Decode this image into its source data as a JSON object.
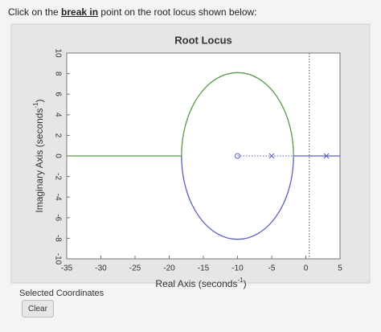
{
  "prompt": {
    "before": "Click on the ",
    "emphasis": "break in",
    "after": " point on the root locus shown below:"
  },
  "chart_data": {
    "type": "root_locus",
    "title": "Root Locus",
    "x_label": {
      "text": "Real Axis (seconds",
      "sup": "-1",
      "end": ")"
    },
    "y_label": {
      "text": "Imaginary Axis (seconds",
      "sup": "-1",
      "end": ")"
    },
    "xlim": [
      -35,
      5
    ],
    "xticks": [
      -35,
      -30,
      -25,
      -20,
      -15,
      -10,
      -5,
      0,
      5
    ],
    "ylim": [
      -10,
      10
    ],
    "yticks": [
      -10,
      -8,
      -6,
      -4,
      -2,
      0,
      2,
      4,
      6,
      8,
      10
    ],
    "ellipse": {
      "cx": -10,
      "cy": 0,
      "rx": 8.2,
      "ry": 8.1,
      "upper_color": "#5a9a4a",
      "lower_color": "#5a5fc0"
    },
    "lines": [
      {
        "x": [
          -35,
          -18.2
        ],
        "y": [
          0,
          0
        ],
        "color": "#5a9a4a"
      },
      {
        "x": [
          -1.8,
          5
        ],
        "y": [
          0,
          0
        ],
        "color": "#5a5fc0"
      }
    ],
    "dotted": {
      "x": [
        -10,
        -1.8
      ],
      "y": [
        0,
        0
      ],
      "color": "#5a5fc0"
    },
    "asymptote": {
      "x": 0.5,
      "color": "#555555"
    },
    "zeros": {
      "x": [
        -10
      ],
      "y": [
        0
      ],
      "color": "#5a5fc0"
    },
    "poles": {
      "x": [
        -5,
        3
      ],
      "y": [
        0,
        0
      ],
      "color": "#5a5fc0"
    }
  },
  "selected_label": "Selected Coordinates",
  "clear_button": "Clear"
}
